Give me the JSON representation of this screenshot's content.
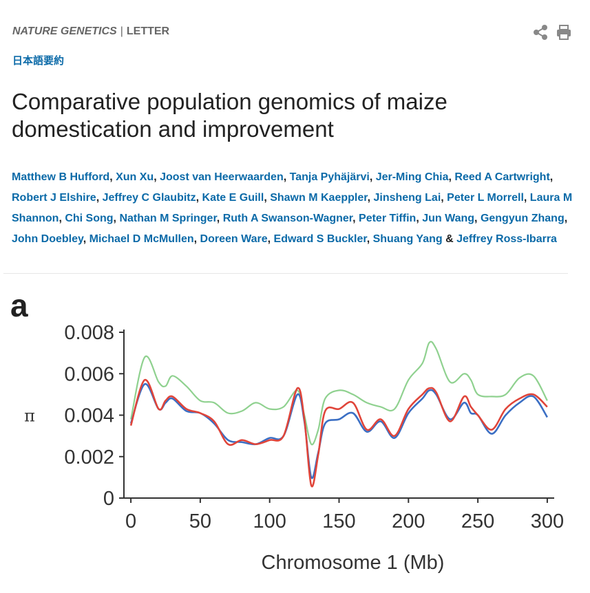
{
  "header": {
    "journal": "NATURE GENETICS",
    "separator": "|",
    "article_type": "LETTER",
    "share_icon": "share-icon",
    "print_icon": "print-icon"
  },
  "japanese_summary_link": "日本語要約",
  "title": "Comparative population genomics of maize domestication and improvement",
  "authors": [
    "Matthew B Hufford",
    "Xun Xu",
    "Joost van Heerwaarden",
    "Tanja Pyhäjärvi",
    "Jer-Ming Chia",
    "Reed A Cartwright",
    "Robert J Elshire",
    "Jeffrey C Glaubitz",
    "Kate E Guill",
    "Shawn M Kaeppler",
    "Jinsheng Lai",
    "Peter L Morrell",
    "Laura M Shannon",
    "Chi Song",
    "Nathan M Springer",
    "Ruth A Swanson-Wagner",
    "Peter Tiffin",
    "Jun Wang",
    "Gengyun Zhang",
    "John Doebley",
    "Michael D McMullen",
    "Doreen Ware",
    "Edward S Buckler",
    "Shuang Yang",
    "Jeffrey Ross-Ibarra"
  ],
  "figure": {
    "panel_label": "a",
    "chart_data": {
      "type": "line",
      "xlabel": "Chromosome 1 (Mb)",
      "ylabel": "π",
      "xlim": [
        -5,
        305
      ],
      "ylim": [
        0,
        0.008
      ],
      "xticks": [
        0,
        50,
        100,
        150,
        200,
        250,
        300
      ],
      "yticks": [
        0,
        0.002,
        0.004,
        0.006,
        0.008
      ],
      "ytick_labels": [
        "0",
        "0.002",
        "0.004",
        "0.006",
        "0.008"
      ],
      "grid": false,
      "x": [
        0,
        10,
        20,
        25,
        30,
        40,
        50,
        60,
        70,
        80,
        90,
        100,
        110,
        120,
        125,
        130,
        135,
        140,
        150,
        160,
        170,
        180,
        190,
        200,
        210,
        215,
        220,
        230,
        240,
        245,
        250,
        260,
        270,
        280,
        290,
        300
      ],
      "series": [
        {
          "color": "#8fd18f",
          "values": [
            0.0038,
            0.0068,
            0.0056,
            0.0054,
            0.0059,
            0.0054,
            0.0047,
            0.0046,
            0.0041,
            0.0042,
            0.0046,
            0.0043,
            0.0044,
            0.0052,
            0.004,
            0.0026,
            0.0033,
            0.0048,
            0.0052,
            0.005,
            0.0046,
            0.0044,
            0.0043,
            0.0057,
            0.0065,
            0.0075,
            0.0072,
            0.0056,
            0.006,
            0.0057,
            0.005,
            0.0049,
            0.005,
            0.0058,
            0.0059,
            0.0047
          ]
        },
        {
          "color": "#3b6fc4",
          "values": [
            0.0036,
            0.0055,
            0.0043,
            0.0046,
            0.0048,
            0.0042,
            0.0041,
            0.0036,
            0.0028,
            0.0027,
            0.0026,
            0.0029,
            0.003,
            0.005,
            0.0037,
            0.001,
            0.0022,
            0.0036,
            0.0038,
            0.0041,
            0.0032,
            0.0037,
            0.0029,
            0.0041,
            0.0048,
            0.0052,
            0.005,
            0.0038,
            0.0046,
            0.0041,
            0.004,
            0.0031,
            0.004,
            0.0046,
            0.0049,
            0.0039
          ]
        },
        {
          "color": "#e0453a",
          "values": [
            0.0035,
            0.0057,
            0.0043,
            0.0047,
            0.0049,
            0.0043,
            0.0041,
            0.0037,
            0.0026,
            0.0028,
            0.0026,
            0.0028,
            0.003,
            0.0053,
            0.0038,
            0.0006,
            0.0021,
            0.0042,
            0.0043,
            0.0046,
            0.0033,
            0.0038,
            0.003,
            0.0043,
            0.005,
            0.0053,
            0.0051,
            0.0037,
            0.0049,
            0.0044,
            0.004,
            0.0033,
            0.0043,
            0.0048,
            0.005,
            0.0044
          ]
        }
      ]
    }
  }
}
